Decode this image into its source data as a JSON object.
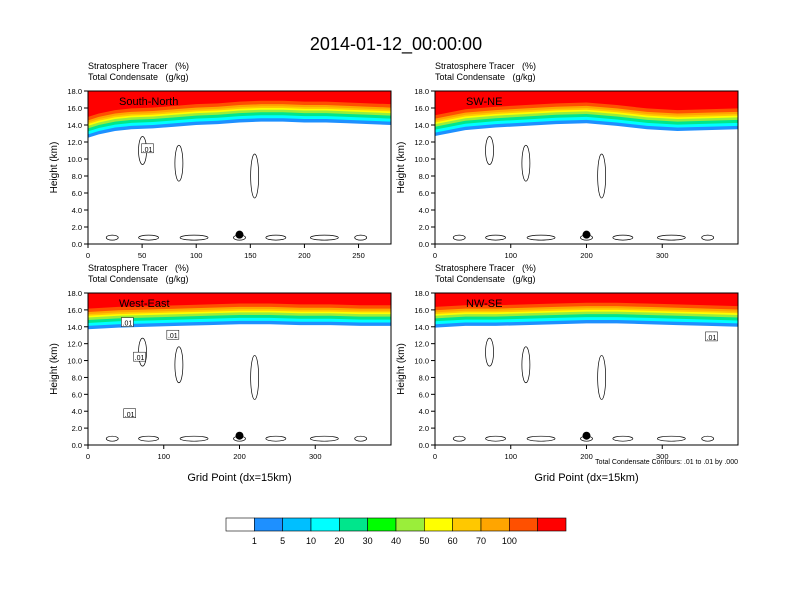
{
  "title": "2014-01-12_00:00:00",
  "chart_data": [
    {
      "type": "heatmap",
      "subtitle_line1": "Stratosphere Tracer   (%)",
      "subtitle_line2": "Total Condensate   (g/kg)",
      "panel_label": "South-North",
      "xlabel": "",
      "ylabel": "Height (km)",
      "xlim": [
        0,
        280
      ],
      "ylim": [
        0,
        18
      ],
      "xticks": [
        0,
        50,
        100,
        150,
        200,
        250
      ],
      "yticks": [
        "0.0",
        "2.0",
        "4.0",
        "6.0",
        "8.0",
        "10.0",
        "12.0",
        "14.0",
        "16.0",
        "18.0"
      ],
      "marker": {
        "x": 140,
        "y": 1.1
      },
      "contour_labels": [
        {
          "text": ".01",
          "x": 55,
          "y": 11.2
        }
      ],
      "tracer_top_profile": [
        [
          0,
          14.4
        ],
        [
          10,
          14.8
        ],
        [
          25,
          15.2
        ],
        [
          40,
          15.4
        ],
        [
          60,
          15.5
        ],
        [
          80,
          15.7
        ],
        [
          100,
          15.9
        ],
        [
          120,
          16.0
        ],
        [
          140,
          16.2
        ],
        [
          160,
          16.3
        ],
        [
          180,
          16.3
        ],
        [
          200,
          16.2
        ],
        [
          220,
          16.2
        ],
        [
          240,
          16.1
        ],
        [
          260,
          16.0
        ],
        [
          280,
          15.9
        ]
      ]
    },
    {
      "type": "heatmap",
      "subtitle_line1": "Stratosphere Tracer   (%)",
      "subtitle_line2": "Total Condensate   (g/kg)",
      "panel_label": "SW-NE",
      "xlabel": "",
      "ylabel": "Height (km)",
      "xlim": [
        0,
        400
      ],
      "ylim": [
        0,
        18
      ],
      "xticks": [
        0,
        100,
        200,
        300
      ],
      "yticks": [
        "0.0",
        "2.0",
        "4.0",
        "6.0",
        "8.0",
        "10.0",
        "12.0",
        "14.0",
        "16.0",
        "18.0"
      ],
      "marker": {
        "x": 200,
        "y": 1.1
      },
      "contour_labels": [],
      "tracer_top_profile": [
        [
          0,
          14.6
        ],
        [
          40,
          15.3
        ],
        [
          80,
          15.6
        ],
        [
          120,
          15.8
        ],
        [
          160,
          16.0
        ],
        [
          200,
          16.1
        ],
        [
          240,
          15.8
        ],
        [
          280,
          15.4
        ],
        [
          320,
          15.2
        ],
        [
          360,
          15.3
        ],
        [
          400,
          15.4
        ]
      ]
    },
    {
      "type": "heatmap",
      "subtitle_line1": "Stratosphere Tracer   (%)",
      "subtitle_line2": "Total Condensate   (g/kg)",
      "panel_label": "West-East",
      "xlabel": "Grid Point (dx=15km)",
      "ylabel": "Height (km)",
      "xlim": [
        0,
        400
      ],
      "ylim": [
        0,
        18
      ],
      "xticks": [
        0,
        100,
        200,
        300
      ],
      "yticks": [
        "0.0",
        "2.0",
        "4.0",
        "6.0",
        "8.0",
        "10.0",
        "12.0",
        "14.0",
        "16.0",
        "18.0"
      ],
      "marker": {
        "x": 200,
        "y": 1.1
      },
      "contour_labels": [
        {
          "text": ".01",
          "x": 52,
          "y": 14.5
        },
        {
          "text": ".01",
          "x": 112,
          "y": 13.0
        },
        {
          "text": ".01",
          "x": 68,
          "y": 10.4
        },
        {
          "text": ".01",
          "x": 55,
          "y": 3.7
        }
      ],
      "tracer_top_profile": [
        [
          0,
          15.6
        ],
        [
          40,
          15.8
        ],
        [
          80,
          15.9
        ],
        [
          120,
          16.0
        ],
        [
          160,
          16.1
        ],
        [
          200,
          16.2
        ],
        [
          240,
          16.2
        ],
        [
          280,
          16.1
        ],
        [
          320,
          16.1
        ],
        [
          360,
          16.0
        ],
        [
          400,
          16.0
        ]
      ]
    },
    {
      "type": "heatmap",
      "subtitle_line1": "Stratosphere Tracer   (%)",
      "subtitle_line2": "Total Condensate   (g/kg)",
      "panel_label": "NW-SE",
      "xlabel": "Grid Point (dx=15km)",
      "ylabel": "Height (km)",
      "xlim": [
        0,
        400
      ],
      "ylim": [
        0,
        18
      ],
      "xticks": [
        0,
        100,
        200,
        300
      ],
      "yticks": [
        "0.0",
        "2.0",
        "4.0",
        "6.0",
        "8.0",
        "10.0",
        "12.0",
        "14.0",
        "16.0",
        "18.0"
      ],
      "marker": {
        "x": 200,
        "y": 1.1
      },
      "contour_labels": [
        {
          "text": ".01",
          "x": 365,
          "y": 12.8
        }
      ],
      "footnote": "Total Condensate Contours: .01 to .01 by .000",
      "tracer_top_profile": [
        [
          0,
          15.8
        ],
        [
          40,
          16.0
        ],
        [
          80,
          16.0
        ],
        [
          120,
          16.1
        ],
        [
          160,
          16.2
        ],
        [
          200,
          16.3
        ],
        [
          240,
          16.3
        ],
        [
          280,
          16.2
        ],
        [
          320,
          16.1
        ],
        [
          360,
          16.0
        ],
        [
          400,
          15.9
        ]
      ]
    }
  ],
  "colorbar": {
    "labels": [
      "1",
      "5",
      "10",
      "20",
      "30",
      "40",
      "50",
      "60",
      "70",
      "100"
    ],
    "colors": [
      "#ffffff",
      "#1e90ff",
      "#00bfff",
      "#00ffff",
      "#00e68c",
      "#00ff00",
      "#9aee3a",
      "#ffff00",
      "#ffc800",
      "#ffa500",
      "#ff5000",
      "#ff0000"
    ]
  }
}
